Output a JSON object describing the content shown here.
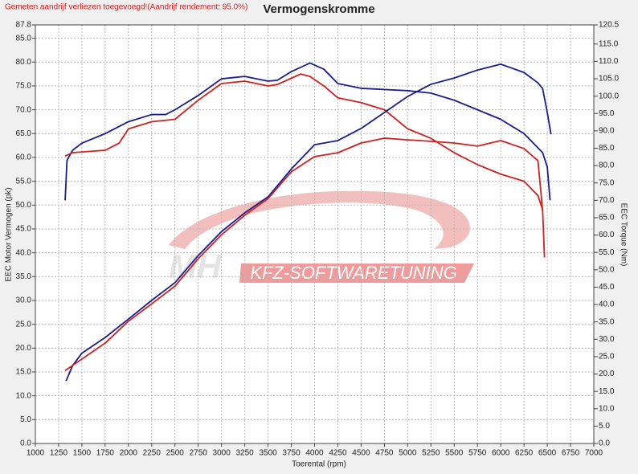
{
  "chart_data": {
    "type": "line",
    "notice": "Gemeten aandrijf verliezen toegevoegd!(Aandrijf rendement: 95.0%)",
    "title": "Vermogenskromme",
    "x_label": "Toerental (rpm)",
    "y_label": "EEC Motor Vermogen (pk)",
    "y2_label": "EEC Torque (Nm)",
    "watermark": [
      "MH",
      "KFZ-SOFTWARETUNING"
    ],
    "grid": true,
    "xlim": [
      1000,
      7000
    ],
    "xticks": [
      1000,
      1250,
      1500,
      1750,
      2000,
      2250,
      2500,
      2750,
      3000,
      3250,
      3500,
      3750,
      4000,
      4250,
      4500,
      4750,
      5000,
      5250,
      5500,
      5750,
      6000,
      6250,
      6500,
      6750,
      7000
    ],
    "ylim": [
      0,
      87.8
    ],
    "yticks": [
      {
        "value": 0,
        "label": "0.0"
      },
      {
        "value": 5,
        "label": "5.0"
      },
      {
        "value": 10,
        "label": "10.0"
      },
      {
        "value": 15,
        "label": "15.0"
      },
      {
        "value": 20,
        "label": "20.0"
      },
      {
        "value": 25,
        "label": "25.0"
      },
      {
        "value": 30,
        "label": "30.0"
      },
      {
        "value": 35,
        "label": "35.0"
      },
      {
        "value": 40,
        "label": "40.0"
      },
      {
        "value": 45,
        "label": "45.0"
      },
      {
        "value": 50,
        "label": "50.0"
      },
      {
        "value": 55,
        "label": "55.0"
      },
      {
        "value": 60,
        "label": "60.0"
      },
      {
        "value": 65,
        "label": "65.0"
      },
      {
        "value": 70,
        "label": "70.0"
      },
      {
        "value": 75,
        "label": "75.0"
      },
      {
        "value": 80,
        "label": "80.0"
      },
      {
        "value": 85,
        "label": "85.0"
      },
      87.8
    ],
    "y2lim": [
      0,
      120.5
    ],
    "y2ticks": [
      {
        "value": 0,
        "label": "0.0"
      },
      {
        "value": 5,
        "label": "5.0"
      },
      {
        "value": 10,
        "label": "10.0"
      },
      {
        "value": 15,
        "label": "15.0"
      },
      {
        "value": 20,
        "label": "20.0"
      },
      {
        "value": 25,
        "label": "25.0"
      },
      {
        "value": 30,
        "label": "30.0"
      },
      {
        "value": 35,
        "label": "35.0"
      },
      {
        "value": 40,
        "label": "40.0"
      },
      {
        "value": 45,
        "label": "45.0"
      },
      {
        "value": 50,
        "label": "50.0"
      },
      {
        "value": 55,
        "label": "55.0"
      },
      {
        "value": 60,
        "label": "60.0"
      },
      {
        "value": 65,
        "label": "65.0"
      },
      {
        "value": 70,
        "label": "70.0"
      },
      {
        "value": 75,
        "label": "75.0"
      },
      {
        "value": 80,
        "label": "80.0"
      },
      {
        "value": 85,
        "label": "85.0"
      },
      {
        "value": 90,
        "label": "90.0"
      },
      {
        "value": 95,
        "label": "95.0"
      },
      {
        "value": 100,
        "label": "100.0"
      },
      {
        "value": 105,
        "label": "105.0"
      },
      {
        "value": 110,
        "label": "110.0"
      },
      {
        "value": 115,
        "label": "115.0"
      },
      120.5
    ],
    "series": [
      {
        "color": "#1c1c8a",
        "x": [
          1320,
          1340,
          1400,
          1500,
          1750,
          2000,
          2250,
          2400,
          2500,
          2750,
          3000,
          3250,
          3500,
          3600,
          3750,
          3950,
          4100,
          4250,
          4500,
          5000,
          5250,
          5500,
          5750,
          6000,
          6250,
          6450,
          6500,
          6530
        ],
        "values": [
          51.0,
          59.4,
          61.5,
          63,
          65,
          67.5,
          69,
          69,
          70,
          73,
          76.5,
          77,
          76,
          76.2,
          78,
          79.8,
          78.5,
          75.5,
          74.5,
          74,
          73.5,
          72,
          70,
          68,
          65,
          61,
          58,
          51
        ]
      },
      {
        "color": "#cc2222",
        "x": [
          1320,
          1400,
          1750,
          1900,
          2000,
          2250,
          2500,
          2750,
          3000,
          3250,
          3500,
          3600,
          3850,
          3950,
          4100,
          4250,
          4500,
          4750,
          5000,
          5250,
          5500,
          5750,
          6000,
          6250,
          6400,
          6450,
          6470
        ],
        "values": [
          60.3,
          61,
          61.5,
          63,
          66,
          67.5,
          68,
          72,
          75.5,
          76,
          75,
          75.3,
          77.5,
          77,
          75,
          72.5,
          71.5,
          70,
          66,
          64,
          61,
          58.5,
          56.5,
          55,
          52,
          49,
          39
        ]
      },
      {
        "color": "#1c1c8a",
        "axis": "y2",
        "x": [
          1330,
          1400,
          1500,
          1750,
          2000,
          2250,
          2500,
          2750,
          3000,
          3250,
          3500,
          3750,
          4000,
          4250,
          4500,
          4750,
          5000,
          5250,
          5500,
          5750,
          6000,
          6250,
          6400,
          6450,
          6500,
          6540
        ],
        "values": [
          18,
          22.4,
          26,
          30.5,
          35.8,
          41.2,
          46.3,
          54.1,
          61,
          66.4,
          71,
          79,
          86,
          87.2,
          90.7,
          95.3,
          99.9,
          103.4,
          105.2,
          107.5,
          109.2,
          106.8,
          103.8,
          102.2,
          95.3,
          89
        ]
      },
      {
        "color": "#cc2222",
        "axis": "y2",
        "x": [
          1320,
          1500,
          1750,
          2000,
          2250,
          2500,
          2750,
          3000,
          3250,
          3500,
          3750,
          4000,
          4250,
          4500,
          4750,
          5000,
          5250,
          5500,
          5750,
          6000,
          6250,
          6400,
          6450
        ],
        "values": [
          21,
          24.3,
          28.9,
          35.2,
          40.2,
          45.3,
          53.2,
          60.1,
          65.7,
          70.5,
          78.2,
          82.6,
          83.7,
          86.5,
          87.9,
          87.4,
          87,
          86.5,
          85.6,
          87.2,
          84.9,
          81.4,
          67
        ]
      }
    ]
  }
}
